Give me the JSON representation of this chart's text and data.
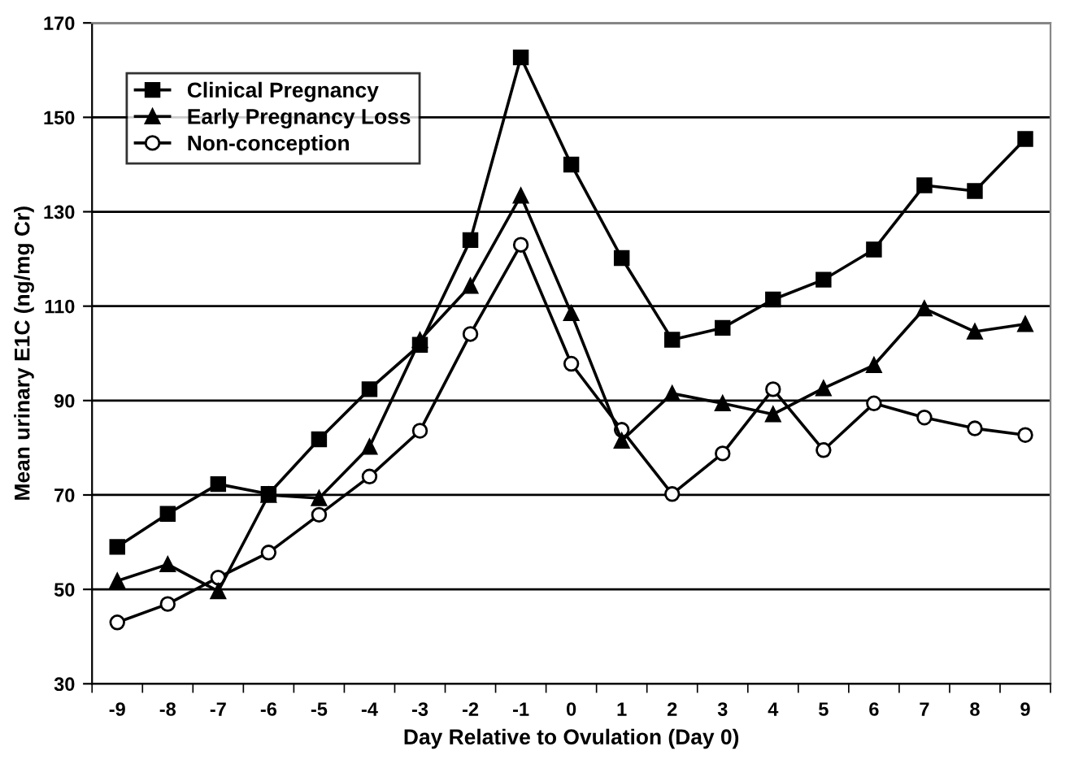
{
  "chart_data": {
    "type": "line",
    "xlabel": "Day Relative to Ovulation (Day 0)",
    "ylabel": "Mean urinary E1C (ng/mg Cr)",
    "categories": [
      "-9",
      "-8",
      "-7",
      "-6",
      "-5",
      "-4",
      "-3",
      "-2",
      "-1",
      "0",
      "1",
      "2",
      "3",
      "4",
      "5",
      "6",
      "7",
      "8",
      "9"
    ],
    "ylim": [
      30,
      170
    ],
    "yticks": [
      30,
      50,
      70,
      90,
      110,
      130,
      150,
      170
    ],
    "grid": "y",
    "legend": "top left",
    "series": [
      {
        "name": "Clinical Pregnancy",
        "color": "#000000",
        "marker": "square",
        "values": [
          59,
          66,
          72.3,
          70.2,
          81.8,
          92.4,
          101.8,
          124,
          162.7,
          140,
          120.2,
          102.9,
          105.4,
          111.4,
          115.6,
          122,
          135.6,
          134.4,
          145.4
        ]
      },
      {
        "name": "Early Pregnancy Loss",
        "color": "#000000",
        "marker": "triangle",
        "values": [
          51.8,
          55.3,
          49.6,
          70,
          69.3,
          80.2,
          102.8,
          114.3,
          133.4,
          108.5,
          81.5,
          91.5,
          89.4,
          87.1,
          92.6,
          97.5,
          109.5,
          104.6,
          106.2
        ]
      },
      {
        "name": "Non-conception",
        "color": "#000000",
        "marker": "circle",
        "values": [
          43,
          46.9,
          52.5,
          57.8,
          65.8,
          73.9,
          83.6,
          104.1,
          123,
          97.8,
          83.8,
          70.2,
          78.8,
          92.4,
          79.5,
          89.4,
          86.4,
          84.1,
          82.7
        ]
      }
    ]
  }
}
